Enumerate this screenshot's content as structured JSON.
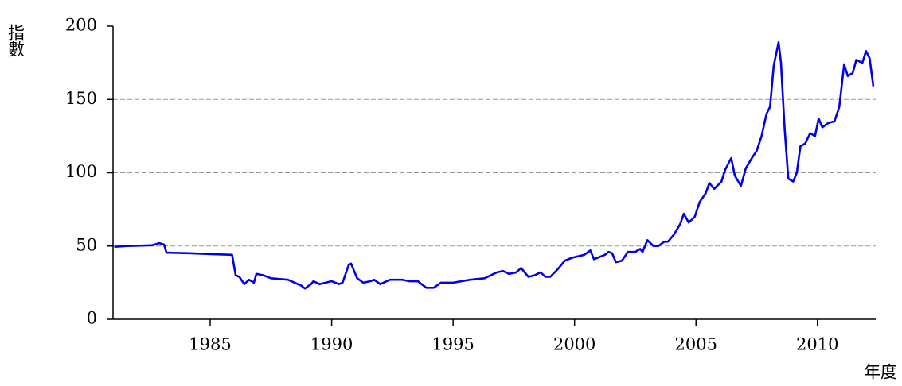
{
  "chart_data": {
    "type": "line",
    "ylabel": "指數",
    "xlabel": "年度",
    "xlim": [
      1981,
      2012.4
    ],
    "ylim": [
      0,
      200
    ],
    "xticks": [
      1985,
      1990,
      1995,
      2000,
      2005,
      2010
    ],
    "yticks": [
      0,
      50,
      100,
      150,
      200
    ],
    "grid": true,
    "series": [
      {
        "color": "#0000ee",
        "x": [
          1981.05,
          1981.6,
          1982.6,
          1982.9,
          1983.1,
          1983.2,
          1984.25,
          1985,
          1985.9,
          1986.05,
          1986.2,
          1986.4,
          1986.6,
          1986.8,
          1986.9,
          1987.2,
          1987.5,
          1988.2,
          1988.75,
          1988.9,
          1989.15,
          1989.25,
          1989.5,
          1990.0,
          1990.3,
          1990.45,
          1990.7,
          1990.8,
          1991.05,
          1991.3,
          1991.6,
          1991.75,
          1992,
          1992.4,
          1992.9,
          1993.2,
          1993.55,
          1993.7,
          1993.9,
          1994.2,
          1994.5,
          1995.0,
          1995.7,
          1996.3,
          1996.8,
          1997.05,
          1997.3,
          1997.6,
          1997.8,
          1998.1,
          1998.35,
          1998.6,
          1998.8,
          1999.0,
          1999.3,
          1999.6,
          1999.9,
          2000.4,
          2000.65,
          2000.8,
          2001.25,
          2001.4,
          2001.55,
          2001.7,
          2001.95,
          2002.2,
          2002.5,
          2002.7,
          2002.8,
          2003.0,
          2003.25,
          2003.45,
          2003.7,
          2003.85,
          2004.1,
          2004.35,
          2004.5,
          2004.7,
          2004.95,
          2005.15,
          2005.4,
          2005.55,
          2005.75,
          2006.05,
          2006.2,
          2006.45,
          2006.6,
          2006.85,
          2007.05,
          2007.3,
          2007.5,
          2007.7,
          2007.9,
          2008.05,
          2008.2,
          2008.4,
          2008.5,
          2008.65,
          2008.8,
          2009.0,
          2009.15,
          2009.3,
          2009.5,
          2009.7,
          2009.9,
          2010.05,
          2010.2,
          2010.45,
          2010.7,
          2010.9,
          2011.1,
          2011.25,
          2011.45,
          2011.6,
          2011.85,
          2012.0,
          2012.15,
          2012.3
        ],
        "values": [
          49.5,
          50,
          50.5,
          52,
          51,
          45.5,
          45,
          44.5,
          44,
          30,
          29,
          24,
          27,
          25,
          31,
          30,
          28,
          27,
          23,
          21,
          24,
          26,
          24,
          26,
          24,
          25,
          37,
          38,
          28,
          25,
          26,
          27,
          24,
          27,
          27,
          26,
          26,
          24,
          21.5,
          21.5,
          25,
          25,
          27,
          28,
          32,
          33,
          31,
          32,
          35,
          29,
          30,
          32,
          29,
          29,
          34,
          40,
          42,
          44,
          47,
          41,
          44,
          46,
          45,
          39,
          40,
          46,
          46,
          48,
          46,
          54,
          50,
          50,
          53,
          53,
          58,
          65,
          72,
          66,
          70,
          80,
          86,
          93,
          89,
          94,
          102,
          110,
          98,
          91,
          103,
          110,
          115,
          125,
          140,
          145,
          173,
          189,
          175,
          130,
          96,
          94,
          100,
          118,
          120,
          127,
          125,
          137,
          131,
          134,
          135,
          145,
          174,
          166,
          168,
          177,
          175,
          183,
          178,
          159
        ]
      }
    ]
  }
}
